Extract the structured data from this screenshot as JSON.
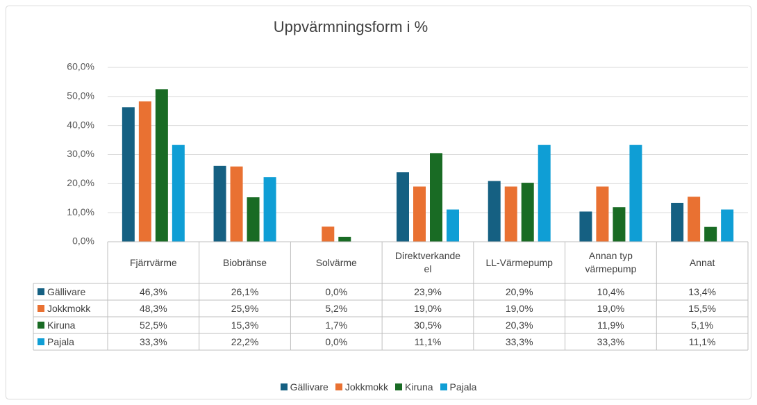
{
  "chart_data": {
    "type": "bar",
    "title": "Uppvärmningsform i %",
    "categories": [
      "Fjärrvärme",
      "Biobränse",
      "Solvärme",
      "Direktverkande el",
      "LL-Värmepump",
      "Annan typ värmepump",
      "Annat"
    ],
    "series": [
      {
        "name": "Gällivare",
        "color": "#156082",
        "values": [
          46.3,
          26.1,
          0.0,
          23.9,
          20.9,
          10.4,
          13.4
        ],
        "value_labels": [
          "46,3%",
          "26,1%",
          "0,0%",
          "23,9%",
          "20,9%",
          "10,4%",
          "13,4%"
        ]
      },
      {
        "name": "Jokkmokk",
        "color": "#e97132",
        "values": [
          48.3,
          25.9,
          5.2,
          19.0,
          19.0,
          19.0,
          15.5
        ],
        "value_labels": [
          "48,3%",
          "25,9%",
          "5,2%",
          "19,0%",
          "19,0%",
          "19,0%",
          "15,5%"
        ]
      },
      {
        "name": "Kiruna",
        "color": "#196b24",
        "values": [
          52.5,
          15.3,
          1.7,
          30.5,
          20.3,
          11.9,
          5.1
        ],
        "value_labels": [
          "52,5%",
          "15,3%",
          "1,7%",
          "30,5%",
          "20,3%",
          "11,9%",
          "5,1%"
        ]
      },
      {
        "name": "Pajala",
        "color": "#0f9ed5",
        "values": [
          33.3,
          22.2,
          0.0,
          11.1,
          33.3,
          33.3,
          11.1
        ],
        "value_labels": [
          "33,3%",
          "22,2%",
          "0,0%",
          "11,1%",
          "33,3%",
          "33,3%",
          "11,1%"
        ]
      }
    ],
    "ylim": [
      0,
      60
    ],
    "yticks": [
      {
        "value": 0,
        "label": "0,0%"
      },
      {
        "value": 10,
        "label": "10,0%"
      },
      {
        "value": 20,
        "label": "20,0%"
      },
      {
        "value": 30,
        "label": "30,0%"
      },
      {
        "value": 40,
        "label": "40,0%"
      },
      {
        "value": 50,
        "label": "50,0%"
      },
      {
        "value": 60,
        "label": "60,0%"
      }
    ],
    "grid": true,
    "legend": "bottom"
  }
}
